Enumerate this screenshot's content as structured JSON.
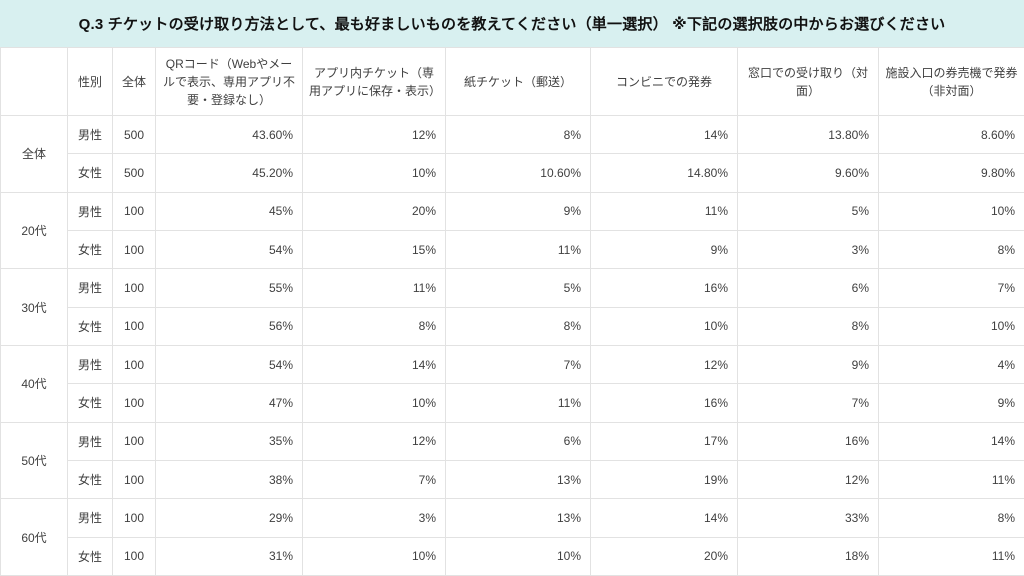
{
  "title": "Q.3 チケットの受け取り方法として、最も好ましいものを教えてください（単一選択） ※下記の選択肢の中からお選びください",
  "colors": {
    "title_bg": "#d8f0f0",
    "border": "#e2e2e2",
    "text": "#3f3f3f"
  },
  "table": {
    "columns": [
      "",
      "性別",
      "全体",
      "QRコード（Webやメールで表示、専用アプリ不要・登録なし）",
      "アプリ内チケット（専用アプリに保存・表示）",
      "紙チケット（郵送）",
      "コンビニでの発券",
      "窓口での受け取り（対面）",
      "施設入口の券売機で発券（非対面）"
    ],
    "groups": [
      {
        "label": "全体",
        "rows": [
          {
            "gender": "男性",
            "total": "500",
            "values": [
              "43.60%",
              "12%",
              "8%",
              "14%",
              "13.80%",
              "8.60%"
            ]
          },
          {
            "gender": "女性",
            "total": "500",
            "values": [
              "45.20%",
              "10%",
              "10.60%",
              "14.80%",
              "9.60%",
              "9.80%"
            ]
          }
        ]
      },
      {
        "label": "20代",
        "rows": [
          {
            "gender": "男性",
            "total": "100",
            "values": [
              "45%",
              "20%",
              "9%",
              "11%",
              "5%",
              "10%"
            ]
          },
          {
            "gender": "女性",
            "total": "100",
            "values": [
              "54%",
              "15%",
              "11%",
              "9%",
              "3%",
              "8%"
            ]
          }
        ]
      },
      {
        "label": "30代",
        "rows": [
          {
            "gender": "男性",
            "total": "100",
            "values": [
              "55%",
              "11%",
              "5%",
              "16%",
              "6%",
              "7%"
            ]
          },
          {
            "gender": "女性",
            "total": "100",
            "values": [
              "56%",
              "8%",
              "8%",
              "10%",
              "8%",
              "10%"
            ]
          }
        ]
      },
      {
        "label": "40代",
        "rows": [
          {
            "gender": "男性",
            "total": "100",
            "values": [
              "54%",
              "14%",
              "7%",
              "12%",
              "9%",
              "4%"
            ]
          },
          {
            "gender": "女性",
            "total": "100",
            "values": [
              "47%",
              "10%",
              "11%",
              "16%",
              "7%",
              "9%"
            ]
          }
        ]
      },
      {
        "label": "50代",
        "rows": [
          {
            "gender": "男性",
            "total": "100",
            "values": [
              "35%",
              "12%",
              "6%",
              "17%",
              "16%",
              "14%"
            ]
          },
          {
            "gender": "女性",
            "total": "100",
            "values": [
              "38%",
              "7%",
              "13%",
              "19%",
              "12%",
              "11%"
            ]
          }
        ]
      },
      {
        "label": "60代",
        "rows": [
          {
            "gender": "男性",
            "total": "100",
            "values": [
              "29%",
              "3%",
              "13%",
              "14%",
              "33%",
              "8%"
            ]
          },
          {
            "gender": "女性",
            "total": "100",
            "values": [
              "31%",
              "10%",
              "10%",
              "20%",
              "18%",
              "11%"
            ]
          }
        ]
      }
    ]
  },
  "chart_data": {
    "type": "table",
    "title": "Q.3 チケットの受け取り方法として、最も好ましいものを教えてください（単一選択） ※下記の選択肢の中からお選びください",
    "columns": [
      "",
      "性別",
      "全体",
      "QRコード（Webやメールで表示、専用アプリ不要・登録なし）",
      "アプリ内チケット（専用アプリに保存・表示）",
      "紙チケット（郵送）",
      "コンビニでの発券",
      "窓口での受け取り（対面）",
      "施設入口の券売機で発券（非対面）"
    ],
    "values_unit": "%",
    "rows": [
      [
        "全体",
        "男性",
        500,
        43.6,
        12,
        8,
        14,
        13.8,
        8.6
      ],
      [
        "全体",
        "女性",
        500,
        45.2,
        10,
        10.6,
        14.8,
        9.6,
        9.8
      ],
      [
        "20代",
        "男性",
        100,
        45,
        20,
        9,
        11,
        5,
        10
      ],
      [
        "20代",
        "女性",
        100,
        54,
        15,
        11,
        9,
        3,
        8
      ],
      [
        "30代",
        "男性",
        100,
        55,
        11,
        5,
        16,
        6,
        7
      ],
      [
        "30代",
        "女性",
        100,
        56,
        8,
        8,
        10,
        8,
        10
      ],
      [
        "40代",
        "男性",
        100,
        54,
        14,
        7,
        12,
        9,
        4
      ],
      [
        "40代",
        "女性",
        100,
        47,
        10,
        11,
        16,
        7,
        9
      ],
      [
        "50代",
        "男性",
        100,
        35,
        12,
        6,
        17,
        16,
        14
      ],
      [
        "50代",
        "女性",
        100,
        38,
        7,
        13,
        19,
        12,
        11
      ],
      [
        "60代",
        "男性",
        100,
        29,
        3,
        13,
        14,
        33,
        8
      ],
      [
        "60代",
        "女性",
        100,
        31,
        10,
        10,
        20,
        18,
        11
      ]
    ]
  }
}
